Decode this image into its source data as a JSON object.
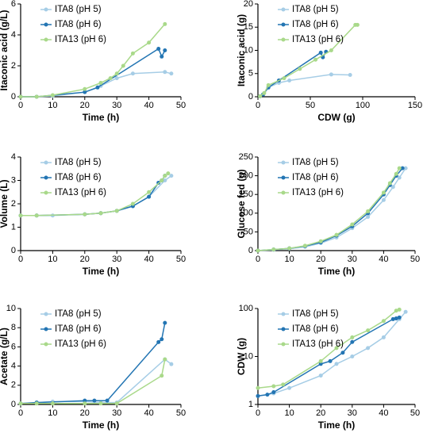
{
  "chart_data": [
    {
      "type": "scatter",
      "x_label": "Time (h)",
      "y_label": "Itaconic acid (g/L)",
      "xlim": [
        0,
        50
      ],
      "xticks": [
        0,
        10,
        20,
        30,
        40,
        50
      ],
      "ylim": [
        0,
        6
      ],
      "yticks": [
        0,
        2,
        4,
        6
      ],
      "legend": "upper-left",
      "series": [
        {
          "name": "ITA8 (pH 5)",
          "color": "#a6cde6",
          "x": [
            0,
            5,
            10,
            20,
            25,
            30,
            35,
            45,
            47
          ],
          "values": [
            0,
            0,
            0.05,
            0.3,
            0.7,
            1.2,
            1.5,
            1.6,
            1.5
          ]
        },
        {
          "name": "ITA8 (pH 6)",
          "color": "#2375b3",
          "x": [
            0,
            5,
            20,
            24,
            43,
            44,
            45
          ],
          "values": [
            0,
            0,
            0.3,
            0.6,
            3.1,
            2.6,
            3.0
          ]
        },
        {
          "name": "ITA13 (pH 6)",
          "color": "#a9d98a",
          "x": [
            0,
            5,
            10,
            20,
            25,
            28,
            30,
            32,
            35,
            40,
            45
          ],
          "values": [
            0,
            0,
            0.1,
            0.5,
            0.9,
            1.2,
            1.5,
            2.0,
            2.8,
            3.5,
            4.7
          ]
        }
      ]
    },
    {
      "type": "scatter",
      "x_label": "CDW (g)",
      "y_label": "Itaconic acid (g)",
      "xlim": [
        0,
        150
      ],
      "xticks": [
        0,
        50,
        100,
        150
      ],
      "ylim": [
        0,
        20
      ],
      "yticks": [
        0,
        5,
        10,
        15,
        20
      ],
      "legend": "upper-left",
      "series": [
        {
          "name": "ITA8 (pH 5)",
          "color": "#a6cde6",
          "x": [
            2,
            5,
            10,
            20,
            30,
            70,
            88
          ],
          "values": [
            0.1,
            0.5,
            2,
            3,
            3.5,
            4.8,
            4.7
          ]
        },
        {
          "name": "ITA8 (pH 6)",
          "color": "#2375b3",
          "x": [
            2,
            5,
            10,
            20,
            60,
            62,
            65
          ],
          "values": [
            0.1,
            0.5,
            2,
            3.5,
            9.5,
            8.5,
            9.7
          ]
        },
        {
          "name": "ITA13 (pH 6)",
          "color": "#a9d98a",
          "x": [
            2,
            6,
            10,
            25,
            40,
            55,
            70,
            93,
            95
          ],
          "values": [
            0.1,
            0.8,
            2.5,
            4,
            6,
            8,
            10,
            15.5,
            15.5
          ]
        }
      ]
    },
    {
      "type": "scatter",
      "x_label": "Time (h)",
      "y_label": "Volume (L)",
      "xlim": [
        0,
        50
      ],
      "xticks": [
        0,
        10,
        20,
        30,
        40,
        50
      ],
      "ylim": [
        0,
        4
      ],
      "yticks": [
        0,
        1,
        2,
        3,
        4
      ],
      "legend": "upper-left",
      "series": [
        {
          "name": "ITA8 (pH 5)",
          "color": "#a6cde6",
          "x": [
            0,
            5,
            10,
            20,
            25,
            30,
            35,
            40,
            45,
            47
          ],
          "values": [
            1.5,
            1.5,
            1.5,
            1.55,
            1.6,
            1.7,
            1.9,
            2.3,
            3.0,
            3.2
          ]
        },
        {
          "name": "ITA8 (pH 6)",
          "color": "#2375b3",
          "x": [
            0,
            5,
            20,
            25,
            30,
            35,
            40,
            43,
            44,
            45
          ],
          "values": [
            1.5,
            1.5,
            1.55,
            1.6,
            1.7,
            1.9,
            2.3,
            2.9,
            3.0,
            3.2
          ]
        },
        {
          "name": "ITA13 (pH 6)",
          "color": "#a9d98a",
          "x": [
            0,
            5,
            20,
            25,
            30,
            35,
            40,
            44,
            45,
            46
          ],
          "values": [
            1.5,
            1.5,
            1.55,
            1.6,
            1.7,
            2.0,
            2.5,
            3.0,
            3.2,
            3.3
          ]
        }
      ]
    },
    {
      "type": "scatter",
      "x_label": "Time (h)",
      "y_label": "Glucose fed (g)",
      "xlim": [
        0,
        50
      ],
      "xticks": [
        0,
        10,
        20,
        30,
        40,
        50
      ],
      "ylim": [
        0,
        250
      ],
      "yticks": [
        0,
        50,
        100,
        150,
        200,
        250
      ],
      "legend": "upper-left",
      "series": [
        {
          "name": "ITA8 (pH 5)",
          "color": "#a6cde6",
          "x": [
            0,
            5,
            10,
            15,
            20,
            25,
            30,
            35,
            40,
            43,
            45,
            47
          ],
          "values": [
            0,
            2,
            5,
            10,
            20,
            35,
            60,
            90,
            135,
            170,
            195,
            220
          ]
        },
        {
          "name": "ITA8 (pH 6)",
          "color": "#2375b3",
          "x": [
            0,
            5,
            10,
            15,
            20,
            25,
            30,
            35,
            40,
            42,
            44,
            46
          ],
          "values": [
            0,
            3,
            6,
            12,
            22,
            40,
            65,
            100,
            150,
            175,
            200,
            220
          ]
        },
        {
          "name": "ITA13 (pH 6)",
          "color": "#a9d98a",
          "x": [
            0,
            5,
            10,
            15,
            20,
            25,
            30,
            35,
            40,
            42,
            44,
            45
          ],
          "values": [
            0,
            3,
            6,
            13,
            25,
            42,
            70,
            105,
            155,
            180,
            205,
            220
          ]
        }
      ]
    },
    {
      "type": "scatter",
      "x_label": "Time (h)",
      "y_label": "Acetate (g/L)",
      "xlim": [
        0,
        50
      ],
      "xticks": [
        0,
        10,
        20,
        30,
        40,
        50
      ],
      "ylim": [
        0,
        10
      ],
      "yticks": [
        0,
        2,
        4,
        6,
        8,
        10
      ],
      "legend": "upper-left",
      "series": [
        {
          "name": "ITA8 (pH 5)",
          "color": "#a6cde6",
          "x": [
            0,
            5,
            10,
            20,
            25,
            30,
            45,
            47
          ],
          "values": [
            0.1,
            0.2,
            0.3,
            0.3,
            0.2,
            0.2,
            4.7,
            4.2
          ]
        },
        {
          "name": "ITA8 (pH 6)",
          "color": "#2375b3",
          "x": [
            0,
            5,
            20,
            23,
            27,
            43,
            44,
            45
          ],
          "values": [
            0.1,
            0.2,
            0.4,
            0.4,
            0.4,
            6.5,
            6.8,
            8.5
          ]
        },
        {
          "name": "ITA13 (pH 6)",
          "color": "#a9d98a",
          "x": [
            0,
            5,
            10,
            20,
            25,
            30,
            44,
            45
          ],
          "values": [
            0.1,
            0.1,
            0.1,
            0.1,
            0.1,
            0.1,
            3.0,
            4.7
          ]
        }
      ]
    },
    {
      "type": "scatter",
      "x_label": "Time (h)",
      "y_label": "CDW (g)",
      "xlim": [
        0,
        50
      ],
      "xticks": [
        0,
        10,
        20,
        30,
        40,
        50
      ],
      "ylim": [
        1,
        100
      ],
      "yticks": [
        1,
        10,
        100
      ],
      "log_y": true,
      "legend": "upper-left",
      "series": [
        {
          "name": "ITA8 (pH 5)",
          "color": "#a6cde6",
          "x": [
            0,
            5,
            10,
            20,
            25,
            30,
            35,
            40,
            45,
            47
          ],
          "values": [
            1.5,
            1.7,
            2.2,
            4,
            7,
            10,
            15,
            25,
            60,
            85
          ]
        },
        {
          "name": "ITA8 (pH 6)",
          "color": "#2375b3",
          "x": [
            0,
            3,
            5,
            20,
            23,
            27,
            30,
            43,
            44,
            45
          ],
          "values": [
            1.5,
            1.6,
            1.8,
            7,
            8,
            12,
            20,
            60,
            62,
            65
          ]
        },
        {
          "name": "ITA13 (pH 6)",
          "color": "#a9d98a",
          "x": [
            0,
            5,
            8,
            20,
            25,
            30,
            35,
            40,
            44,
            45
          ],
          "values": [
            2.2,
            2.4,
            2.6,
            8,
            15,
            25,
            35,
            55,
            90,
            95
          ]
        }
      ]
    }
  ]
}
